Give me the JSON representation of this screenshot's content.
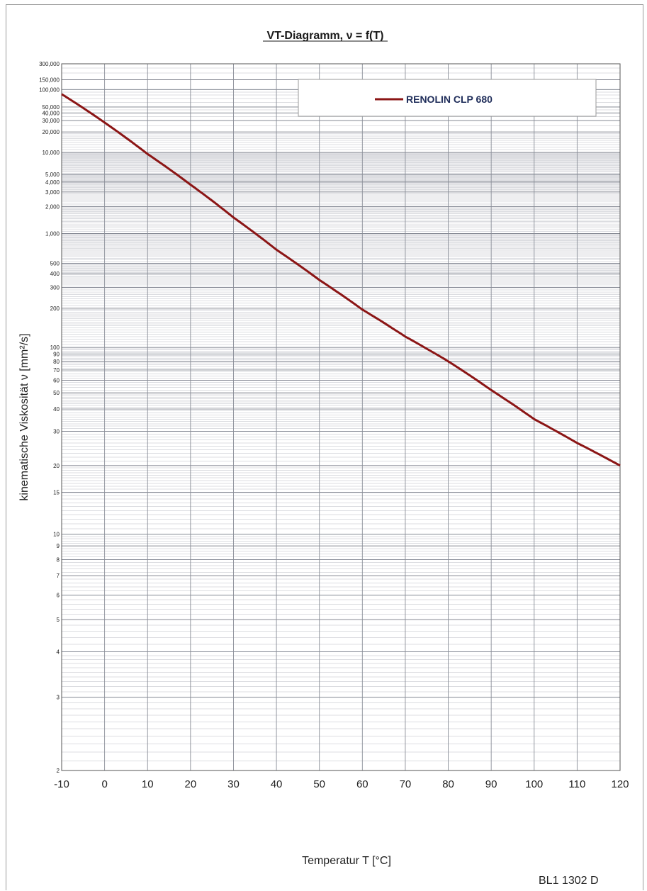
{
  "footer": {
    "doc_code": "BL1 1302 D"
  },
  "chart_data": {
    "type": "line",
    "title": "VT-Diagramm, ν = f(T)",
    "xlabel": "Temperatur T [°C]",
    "ylabel": "kinematische Viskosität ν [mm²/s]",
    "x_scale": "linear",
    "y_scale": "double-log (Ubbelohde VT chart)",
    "xlim": [
      -10,
      120
    ],
    "ylim": [
      2,
      300000
    ],
    "grid": true,
    "legend_position": "top-right",
    "x_ticks": [
      -10,
      0,
      10,
      20,
      30,
      40,
      50,
      60,
      70,
      80,
      90,
      100,
      110,
      120
    ],
    "y_tick_values": [
      300000,
      150000,
      100000,
      50000,
      40000,
      30000,
      20000,
      10000,
      5000,
      4000,
      3000,
      2000,
      1000,
      500,
      400,
      300,
      200,
      100,
      90,
      80,
      70,
      60,
      50,
      40,
      30,
      20,
      15,
      10,
      9,
      8,
      7,
      6,
      5,
      4,
      3,
      2
    ],
    "y_tick_labels": [
      "300,000",
      "150,000",
      "100,000",
      "50,000",
      "40,000",
      "30,000",
      "20,000",
      "10,000",
      "5,000",
      "4,000",
      "3,000",
      "2,000",
      "1,000",
      "500",
      "400",
      "300",
      "200",
      "100",
      "90",
      "80",
      "70",
      "60",
      "50",
      "40",
      "30",
      "20",
      "15",
      "10",
      "9",
      "8",
      "7",
      "6",
      "5",
      "4",
      "3",
      "2"
    ],
    "series": [
      {
        "name": "RENOLIN CLP 680",
        "color": "#8b1515",
        "x": [
          -10,
          0,
          10,
          20,
          30,
          40,
          50,
          60,
          70,
          80,
          90,
          100,
          110,
          120
        ],
        "y": [
          83000,
          28000,
          9500,
          3700,
          1500,
          680,
          350,
          195,
          120,
          80,
          52,
          35,
          26,
          20
        ]
      }
    ]
  }
}
